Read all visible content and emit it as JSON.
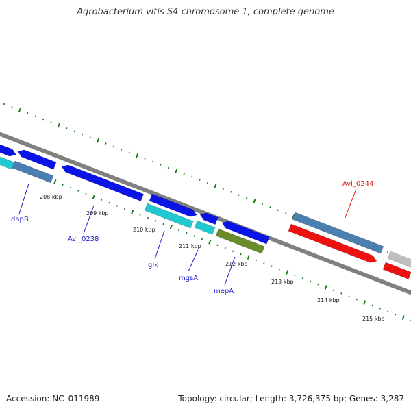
{
  "title": "Agrobacterium vitis S4 chromosome 1, complete genome",
  "footer": {
    "accession": "Accession: NC_011989",
    "summary": "Topology: circular; Length: 3,726,375 bp; Genes: 3,287"
  },
  "colors": {
    "backbone": "#808080",
    "dots": "#1a7a1a",
    "cds_blue": "#0a14e6",
    "cds_cyan": "#1fc9cf",
    "steel_blue": "#4a7fb0",
    "olive": "#6b8c2a",
    "red": "#ee1111",
    "gray": "#bfbfbf",
    "label_blue": "#1a1acc",
    "label_red": "#dd1111"
  },
  "ticks": [
    "208 kbp",
    "209 kbp",
    "210 kbp",
    "211 kbp",
    "212 kbp",
    "213 kbp",
    "214 kbp",
    "215 kbp"
  ],
  "gene_labels": [
    {
      "name": "dapB",
      "color": "label_blue"
    },
    {
      "name": "Avi_0238",
      "color": "label_blue"
    },
    {
      "name": "glk",
      "color": "label_blue"
    },
    {
      "name": "mgsA",
      "color": "label_blue"
    },
    {
      "name": "mepA",
      "color": "label_blue"
    },
    {
      "name": "Avi_0244",
      "color": "label_red"
    }
  ]
}
